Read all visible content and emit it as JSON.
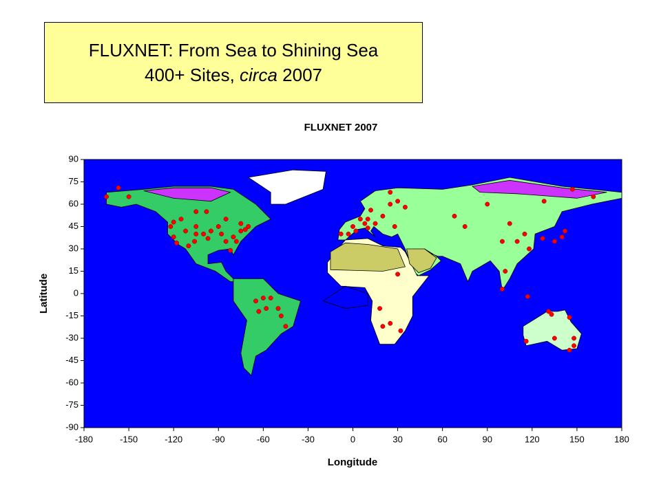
{
  "header": {
    "title": "FLUXNET: From Sea to Shining Sea",
    "subtitle": [
      "400+ Sites,",
      "circa",
      "2007"
    ]
  },
  "chart_data": {
    "type": "scatter",
    "title": "FLUXNET 2007",
    "x_label": "Longitude",
    "y_label": "Latitude",
    "xlim": [
      -180,
      180
    ],
    "xticks": [
      -180,
      -150,
      -120,
      -90,
      -60,
      -30,
      0,
      30,
      60,
      90,
      120,
      150,
      180
    ],
    "ylim": [
      -90,
      90
    ],
    "yticks": [
      90,
      75,
      60,
      45,
      30,
      15,
      0,
      -15,
      -30,
      -45,
      -60,
      -75,
      -90
    ],
    "color": "#ff0000",
    "x": [
      -120,
      -122,
      -118,
      -110,
      -105,
      -105,
      -100,
      -97,
      -95,
      -90,
      -88,
      -85,
      -80,
      -75,
      -72,
      -70,
      -78,
      -82,
      -115,
      -105,
      -98,
      -85,
      -75,
      -106,
      -112,
      -120,
      -150,
      -157,
      -165,
      -60,
      -55,
      -65,
      -50,
      -48,
      -45,
      -58,
      -63,
      0,
      5,
      10,
      15,
      20,
      25,
      12,
      8,
      -3,
      -8,
      2,
      10,
      25,
      30,
      35,
      28,
      30,
      25,
      20,
      32,
      18,
      90,
      100,
      110,
      115,
      118,
      127,
      135,
      140,
      142,
      102,
      100,
      117,
      128,
      147,
      161,
      75,
      68,
      105,
      131,
      133,
      145,
      148,
      148,
      145,
      135,
      116
    ],
    "values": [
      38,
      45,
      34,
      32,
      40,
      45,
      40,
      37,
      42,
      45,
      40,
      35,
      38,
      42,
      43,
      45,
      35,
      29,
      50,
      55,
      55,
      50,
      47,
      35,
      42,
      48,
      65,
      71,
      65,
      -3,
      -3,
      -5,
      -10,
      -15,
      -22,
      -10,
      -12,
      45,
      50,
      50,
      47,
      52,
      60,
      56,
      47,
      40,
      40,
      42,
      44,
      68,
      62,
      58,
      45,
      13,
      -20,
      -22,
      -25,
      -10,
      60,
      35,
      35,
      40,
      30,
      37,
      35,
      38,
      42,
      15,
      3,
      -2,
      62,
      70,
      65,
      45,
      52,
      47,
      -12,
      -14,
      -16,
      -30,
      -35,
      -38,
      -30,
      -32
    ]
  }
}
